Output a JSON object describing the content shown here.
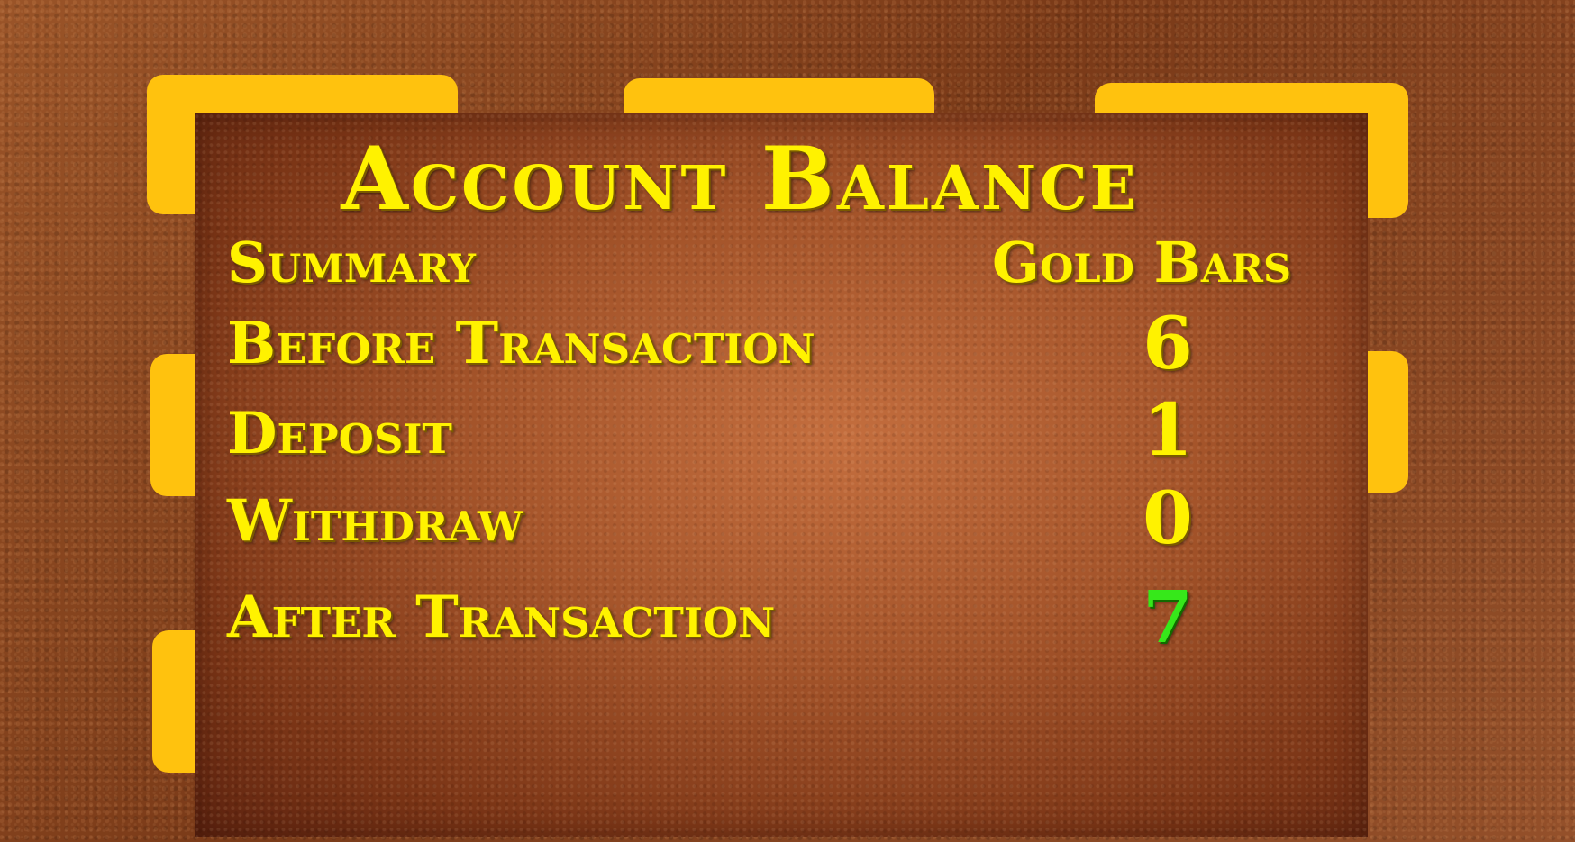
{
  "title": "Account Balance",
  "headers": {
    "summary": "Summary",
    "gold_bars": "Gold Bars"
  },
  "rows": [
    {
      "label": "Before Transaction",
      "value": "6"
    },
    {
      "label": "Deposit",
      "value": "1"
    },
    {
      "label": "Withdraw",
      "value": "0"
    },
    {
      "label": "After Transaction",
      "value": "7"
    }
  ],
  "colors": {
    "text": "#fff200",
    "result": "#36e81a",
    "tabs": "#ffc20e"
  }
}
